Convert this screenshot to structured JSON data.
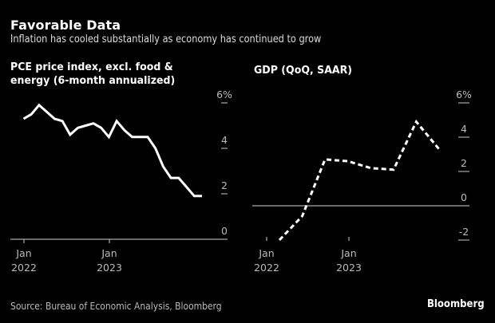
{
  "header": {
    "title": "Favorable Data",
    "subtitle": "Inflation has cooled substantially as economy has continued to grow"
  },
  "footer": {
    "source": "Source: Bureau of Economic Analysis, Bloomberg",
    "brand": "Bloomberg"
  },
  "colors": {
    "background": "#000000",
    "line": "#ffffff",
    "axis": "#aaaaaa",
    "label": "#bbbbbb"
  },
  "chart_data": [
    {
      "type": "line",
      "title": "PCE price index, excl. food & energy (6-month annualized)",
      "title_lines": [
        "PCE price index, excl. food &",
        "energy (6-month annualized)"
      ],
      "xlabel": "",
      "ylabel": "",
      "ylim": [
        0,
        6
      ],
      "yticks": [
        0,
        2,
        4,
        6
      ],
      "ytick_labels": [
        "0",
        "2",
        "4",
        "6%"
      ],
      "xtick_labels": [
        [
          "Jan",
          "2022"
        ],
        [
          "Jan",
          "2023"
        ]
      ],
      "line_style": "solid",
      "grid": false,
      "series": [
        {
          "name": "PCE core 6-month annualized",
          "x": [
            "2022-01",
            "2022-02",
            "2022-03",
            "2022-04",
            "2022-05",
            "2022-06",
            "2022-07",
            "2022-08",
            "2022-09",
            "2022-10",
            "2022-11",
            "2022-12",
            "2023-01",
            "2023-02",
            "2023-03",
            "2023-04",
            "2023-05",
            "2023-06",
            "2023-07",
            "2023-08",
            "2023-09",
            "2023-10",
            "2023-11",
            "2023-12"
          ],
          "values": [
            5.3,
            5.5,
            5.9,
            5.6,
            5.3,
            5.2,
            4.6,
            4.9,
            5.0,
            5.1,
            4.9,
            4.5,
            5.2,
            4.8,
            4.5,
            4.5,
            4.5,
            4.0,
            3.2,
            2.7,
            2.7,
            2.3,
            1.9,
            1.9
          ]
        }
      ]
    },
    {
      "type": "line",
      "title": "GDP (QoQ, SAAR)",
      "title_lines": [
        "GDP (QoQ, SAAR)"
      ],
      "xlabel": "",
      "ylabel": "",
      "ylim": [
        -2,
        6
      ],
      "yticks": [
        -2,
        0,
        2,
        4,
        6
      ],
      "ytick_labels": [
        "-2",
        "0",
        "2",
        "4",
        "6%"
      ],
      "xtick_labels": [
        [
          "Jan",
          "2022"
        ],
        [
          "Jan",
          "2023"
        ]
      ],
      "line_style": "dashed",
      "grid": false,
      "series": [
        {
          "name": "GDP QoQ SAAR",
          "x": [
            "2022-Q1",
            "2022-Q2",
            "2022-Q3",
            "2022-Q4",
            "2023-Q1",
            "2023-Q2",
            "2023-Q3",
            "2023-Q4"
          ],
          "values": [
            -2.0,
            -0.6,
            2.7,
            2.6,
            2.2,
            2.1,
            4.9,
            3.3
          ]
        }
      ]
    }
  ]
}
